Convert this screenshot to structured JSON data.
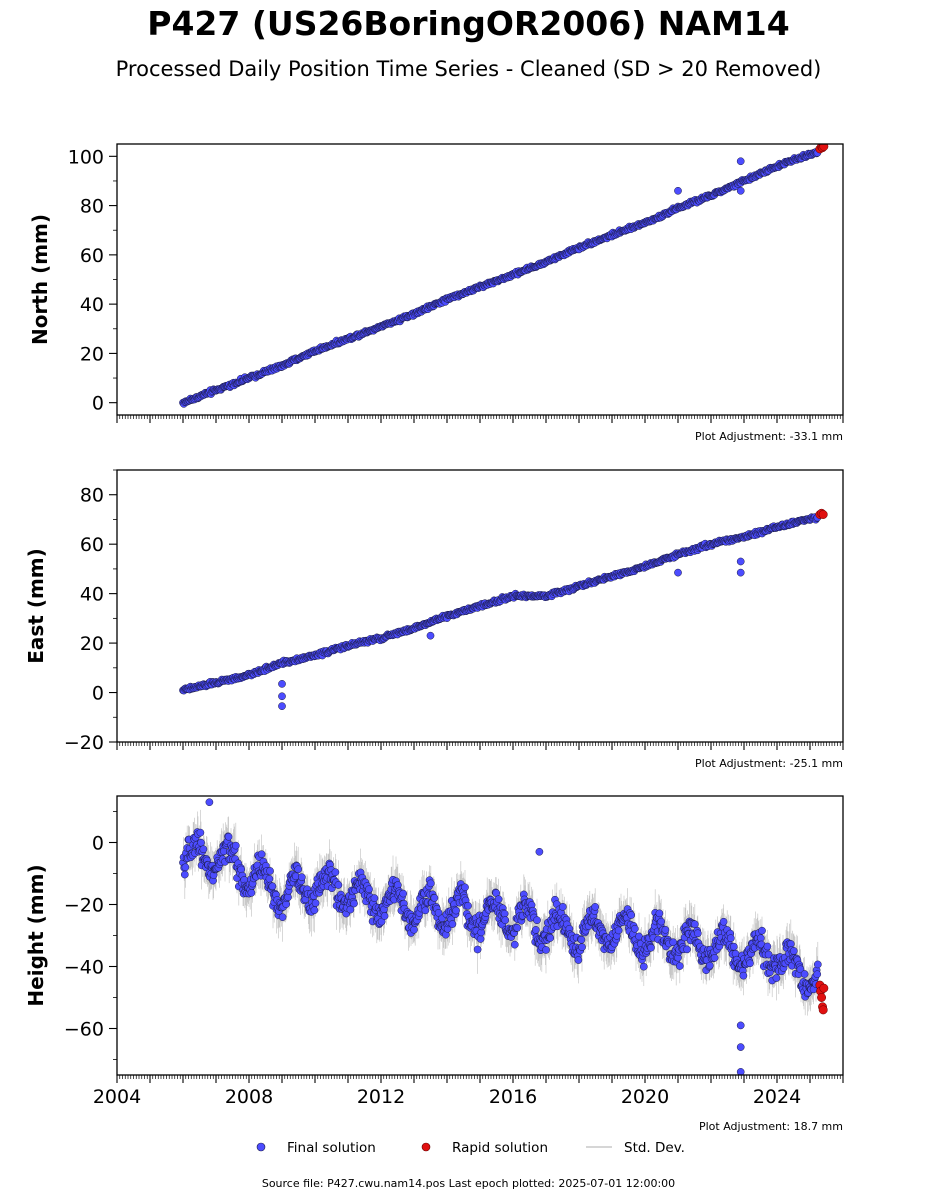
{
  "title": "P427 (US26BoringOR2006) NAM14",
  "subtitle": "Processed Daily Position Time Series - Cleaned (SD > 20 Removed)",
  "source_note": "Source file: P427.cwu.nam14.pos  Last epoch plotted: 2025-07-01 12:00:00",
  "colors": {
    "final": "#4c4cff",
    "final_edge": "#1a1a40",
    "rapid": "#e01010",
    "rapid_edge": "#600000",
    "stddev": "#b0b0b0"
  },
  "legend": {
    "final": "Final solution",
    "rapid": "Rapid solution",
    "stddev": "Std. Dev."
  },
  "chart_data": [
    {
      "type": "scatter",
      "ylabel": "North (mm)",
      "adjustment": "Plot Adjustment: -33.1 mm",
      "xlim": [
        2004.0,
        2026.0
      ],
      "ylim": [
        -5,
        105
      ],
      "yticks": [
        0,
        20,
        40,
        60,
        80,
        100
      ],
      "ytick_labels": [
        "0",
        "20",
        "40",
        "60",
        "80",
        "100"
      ],
      "show_xtick_labels": false,
      "series": [
        {
          "name": "Final solution",
          "x": [
            2006.0,
            2007.0,
            2008.0,
            2009.0,
            2010.0,
            2011.0,
            2012.0,
            2013.0,
            2014.0,
            2015.0,
            2016.0,
            2017.0,
            2018.0,
            2019.0,
            2020.0,
            2021.0,
            2022.0,
            2023.0,
            2024.0,
            2025.25
          ],
          "y": [
            0,
            5,
            10,
            15,
            21,
            26,
            31,
            36,
            42,
            47,
            52,
            57,
            63,
            68,
            73,
            79,
            84,
            90,
            96,
            102
          ],
          "outliers": [
            [
              2021.0,
              86
            ],
            [
              2022.9,
              98
            ],
            [
              2022.9,
              86
            ]
          ]
        },
        {
          "name": "Rapid solution",
          "x": [
            2025.3,
            2025.35,
            2025.38,
            2025.42
          ],
          "y": [
            103,
            104,
            103.5,
            104
          ]
        }
      ]
    },
    {
      "type": "scatter",
      "ylabel": "East (mm)",
      "adjustment": "Plot Adjustment: -25.1 mm",
      "xlim": [
        2004.0,
        2026.0
      ],
      "ylim": [
        -20,
        90
      ],
      "yticks": [
        -20,
        0,
        20,
        40,
        60,
        80
      ],
      "ytick_labels": [
        "−20",
        "0",
        "20",
        "40",
        "60",
        "80"
      ],
      "show_xtick_labels": false,
      "series": [
        {
          "name": "Final solution",
          "x": [
            2006.0,
            2007.0,
            2008.0,
            2009.0,
            2010.0,
            2011.0,
            2012.0,
            2013.0,
            2014.0,
            2015.0,
            2016.0,
            2017.0,
            2018.0,
            2019.0,
            2020.0,
            2021.0,
            2022.0,
            2023.0,
            2024.0,
            2025.25
          ],
          "y": [
            1,
            4,
            7,
            12,
            15,
            19,
            22,
            26,
            31,
            35,
            39,
            39,
            43,
            47,
            51,
            56,
            60,
            63,
            67,
            71
          ],
          "outliers": [
            [
              2009.0,
              3.5
            ],
            [
              2009.0,
              -1.5
            ],
            [
              2009.0,
              -5.5
            ],
            [
              2021.0,
              48.5
            ],
            [
              2022.9,
              48.5
            ],
            [
              2022.9,
              53
            ],
            [
              2013.5,
              23
            ]
          ]
        },
        {
          "name": "Rapid solution",
          "x": [
            2025.3,
            2025.35,
            2025.4
          ],
          "y": [
            72,
            72.5,
            72
          ]
        }
      ]
    },
    {
      "type": "scatter",
      "ylabel": "Height (mm)",
      "adjustment": "Plot Adjustment: 18.7 mm",
      "xlim": [
        2004.0,
        2026.0
      ],
      "ylim": [
        -75,
        15
      ],
      "yticks": [
        -60,
        -40,
        -20,
        0
      ],
      "ytick_labels": [
        "−60",
        "−40",
        "−20",
        "0"
      ],
      "xticks": [
        2004,
        2008,
        2012,
        2016,
        2020,
        2024
      ],
      "xtick_labels": [
        "2004",
        "2008",
        "2012",
        "2016",
        "2020",
        "2024"
      ],
      "show_xtick_labels": true,
      "series": [
        {
          "name": "Final solution",
          "x": [
            2006.0,
            2007.0,
            2008.0,
            2009.0,
            2010.0,
            2011.0,
            2012.0,
            2013.0,
            2014.0,
            2015.0,
            2016.0,
            2017.0,
            2018.0,
            2019.0,
            2020.0,
            2021.0,
            2022.0,
            2023.0,
            2024.0,
            2025.25
          ],
          "y": [
            -5,
            -4,
            -10,
            -17,
            -14,
            -16,
            -19,
            -21,
            -22,
            -24,
            -24,
            -27,
            -29,
            -28,
            -31,
            -32,
            -33,
            -36,
            -37,
            -44
          ],
          "outliers": [
            [
              2006.8,
              13
            ],
            [
              2022.9,
              -59
            ],
            [
              2022.9,
              -66
            ],
            [
              2022.9,
              -74
            ],
            [
              2016.8,
              -3
            ]
          ]
        },
        {
          "name": "Rapid solution",
          "x": [
            2025.3,
            2025.32,
            2025.35,
            2025.38,
            2025.4,
            2025.42
          ],
          "y": [
            -46,
            -48,
            -50,
            -53,
            -54,
            -47
          ]
        }
      ]
    }
  ]
}
